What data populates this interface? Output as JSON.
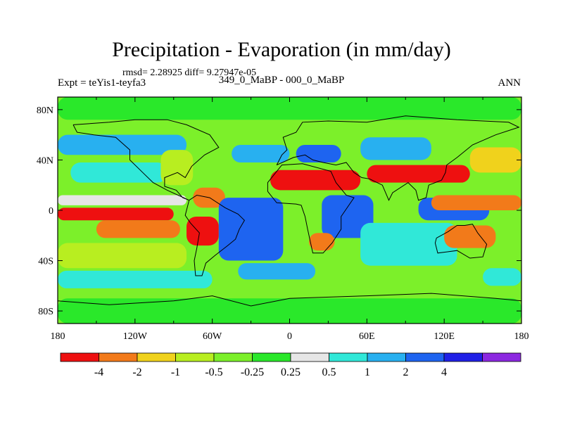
{
  "title": "Precipitation - Evaporation (in mm/day)",
  "stats": "rmsd= 2.28925 diff= 9.27947e-05",
  "experiment": "Expt = teYis1-teyfa3",
  "period": "349_0_MaBP - 000_0_MaBP",
  "season": "ANN",
  "axes": {
    "lon_ticks": [
      "180",
      "120W",
      "60W",
      "0",
      "60E",
      "120E",
      "180"
    ],
    "lat_ticks": [
      "80N",
      "40N",
      "0",
      "40S",
      "80S"
    ]
  },
  "colorbar": {
    "colors": [
      "#ee1010",
      "#f27a1a",
      "#f0d21c",
      "#b8ee20",
      "#7cf02a",
      "#2ae82a",
      "#e6e6e6",
      "#30e8d8",
      "#28b0f0",
      "#1e64f0",
      "#2020e6",
      "#8c28e0"
    ],
    "labels": [
      "-4",
      "-2",
      "-1",
      "-0.5",
      "-0.25",
      "0.25",
      "0.5",
      "1",
      "2",
      "4"
    ]
  },
  "chart_data": {
    "type": "heatmap",
    "title": "Precipitation - Evaporation (in mm/day)",
    "subtitle": "349_0_MaBP - 000_0_MaBP",
    "xlim": [
      -180,
      180
    ],
    "ylim": [
      -90,
      90
    ],
    "levels": [
      -4,
      -2,
      -1,
      -0.5,
      -0.25,
      0.25,
      0.5,
      1,
      2,
      4
    ],
    "regions": [
      {
        "lon": [
          -180,
          180
        ],
        "lat": [
          -90,
          -70
        ],
        "value": 0
      },
      {
        "lon": [
          -180,
          180
        ],
        "lat": [
          72,
          90
        ],
        "value": 0
      },
      {
        "lon": [
          -180,
          -80
        ],
        "lat": [
          44,
          60
        ],
        "value": 2
      },
      {
        "lon": [
          -170,
          -95
        ],
        "lat": [
          22,
          38
        ],
        "value": 1
      },
      {
        "lon": [
          -180,
          -80
        ],
        "lat": [
          4,
          12
        ],
        "value": 0.5
      },
      {
        "lon": [
          -180,
          -90
        ],
        "lat": [
          -8,
          2
        ],
        "value": -4
      },
      {
        "lon": [
          -150,
          -85
        ],
        "lat": [
          -22,
          -8
        ],
        "value": -2
      },
      {
        "lon": [
          -180,
          -80
        ],
        "lat": [
          -46,
          -26
        ],
        "value": -0.5
      },
      {
        "lon": [
          -180,
          -60
        ],
        "lat": [
          -62,
          -48
        ],
        "value": 1
      },
      {
        "lon": [
          -100,
          -75
        ],
        "lat": [
          20,
          48
        ],
        "value": -0.5
      },
      {
        "lon": [
          -80,
          -55
        ],
        "lat": [
          -28,
          -5
        ],
        "value": -4
      },
      {
        "lon": [
          -75,
          -50
        ],
        "lat": [
          2,
          18
        ],
        "value": -2
      },
      {
        "lon": [
          -55,
          -5
        ],
        "lat": [
          -40,
          10
        ],
        "value": 4
      },
      {
        "lon": [
          -40,
          20
        ],
        "lat": [
          -55,
          -42
        ],
        "value": 2
      },
      {
        "lon": [
          -45,
          0
        ],
        "lat": [
          38,
          52
        ],
        "value": 2
      },
      {
        "lon": [
          5,
          40
        ],
        "lat": [
          38,
          52
        ],
        "value": 4
      },
      {
        "lon": [
          -15,
          55
        ],
        "lat": [
          16,
          32
        ],
        "value": -4
      },
      {
        "lon": [
          25,
          65
        ],
        "lat": [
          -22,
          12
        ],
        "value": 4
      },
      {
        "lon": [
          15,
          35
        ],
        "lat": [
          -32,
          -18
        ],
        "value": -2
      },
      {
        "lon": [
          60,
          140
        ],
        "lat": [
          22,
          36
        ],
        "value": -4
      },
      {
        "lon": [
          55,
          110
        ],
        "lat": [
          40,
          58
        ],
        "value": 2
      },
      {
        "lon": [
          55,
          130
        ],
        "lat": [
          -44,
          -10
        ],
        "value": 1
      },
      {
        "lon": [
          120,
          160
        ],
        "lat": [
          -30,
          -12
        ],
        "value": -2
      },
      {
        "lon": [
          100,
          155
        ],
        "lat": [
          -8,
          10
        ],
        "value": 4
      },
      {
        "lon": [
          140,
          180
        ],
        "lat": [
          30,
          50
        ],
        "value": -1
      },
      {
        "lon": [
          110,
          180
        ],
        "lat": [
          0,
          12
        ],
        "value": -2
      },
      {
        "lon": [
          150,
          180
        ],
        "lat": [
          -60,
          -46
        ],
        "value": 1
      }
    ]
  }
}
